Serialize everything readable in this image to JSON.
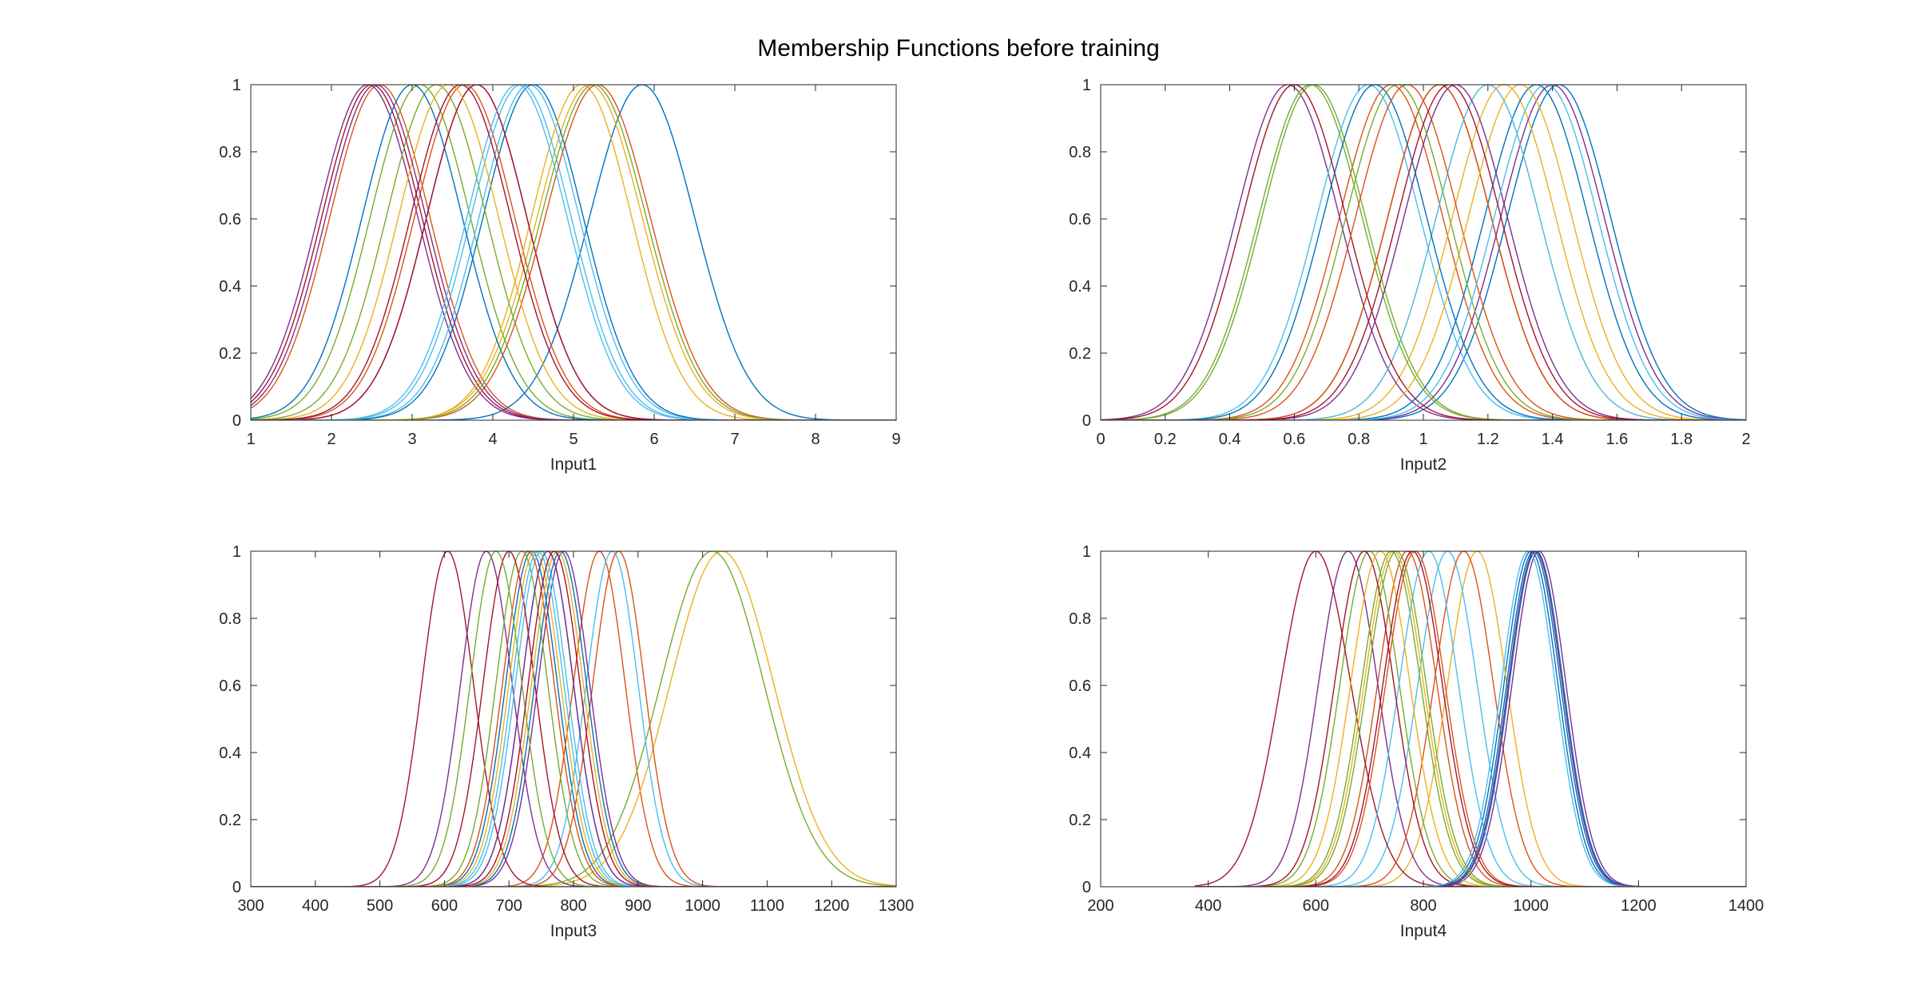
{
  "title": "Membership Functions before training",
  "colors": [
    "#0072BD",
    "#D95319",
    "#EDB120",
    "#7E2F8E",
    "#77AC30",
    "#4DBEEE",
    "#A2142F"
  ],
  "chart_data": [
    {
      "type": "line",
      "xlabel": "Input1",
      "ylabel": "",
      "xlim": [
        1,
        9
      ],
      "ylim": [
        0,
        1
      ],
      "xticks": [
        1,
        2,
        3,
        4,
        5,
        6,
        7,
        8,
        9
      ],
      "yticks": [
        0,
        0.2,
        0.4,
        0.6,
        0.8,
        1
      ],
      "ytick_labels": [
        "0",
        "0.2",
        "0.4",
        "0.6",
        "0.8",
        "1"
      ],
      "curve": "gaussian",
      "series": [
        {
          "mean": 5.85,
          "sigma": 0.65
        },
        {
          "mean": 2.6,
          "sigma": 0.62
        },
        {
          "mean": 5.2,
          "sigma": 0.65
        },
        {
          "mean": 2.45,
          "sigma": 0.62
        },
        {
          "mean": 3.1,
          "sigma": 0.62
        },
        {
          "mean": 4.45,
          "sigma": 0.62
        },
        {
          "mean": 2.5,
          "sigma": 0.62
        },
        {
          "mean": 4.5,
          "sigma": 0.62
        },
        {
          "mean": 3.65,
          "sigma": 0.62
        },
        {
          "mean": 5.1,
          "sigma": 0.62
        },
        {
          "mean": 3.8,
          "sigma": 0.62
        },
        {
          "mean": 3.3,
          "sigma": 0.62
        },
        {
          "mean": 4.35,
          "sigma": 0.62
        },
        {
          "mean": 3.8,
          "sigma": 0.62
        },
        {
          "mean": 3.0,
          "sigma": 0.62
        },
        {
          "mean": 5.3,
          "sigma": 0.65
        },
        {
          "mean": 3.45,
          "sigma": 0.62
        },
        {
          "mean": 2.55,
          "sigma": 0.62
        },
        {
          "mean": 5.25,
          "sigma": 0.65
        },
        {
          "mean": 4.3,
          "sigma": 0.62
        },
        {
          "mean": 3.6,
          "sigma": 0.62
        }
      ]
    },
    {
      "type": "line",
      "xlabel": "Input2",
      "ylabel": "",
      "xlim": [
        0,
        2
      ],
      "ylim": [
        0,
        1
      ],
      "xticks": [
        0,
        0.2,
        0.4,
        0.6,
        0.8,
        1,
        1.2,
        1.4,
        1.6,
        1.8,
        2
      ],
      "yticks": [
        0,
        0.2,
        0.4,
        0.6,
        0.8,
        1
      ],
      "ytick_labels": [
        "0",
        "0.2",
        "0.4",
        "0.6",
        "0.8",
        "1"
      ],
      "curve": "gaussian",
      "series": [
        {
          "mean": 1.42,
          "sigma": 0.16
        },
        {
          "mean": 0.9,
          "sigma": 0.16
        },
        {
          "mean": 1.25,
          "sigma": 0.16
        },
        {
          "mean": 0.58,
          "sigma": 0.16
        },
        {
          "mean": 0.66,
          "sigma": 0.16
        },
        {
          "mean": 0.83,
          "sigma": 0.16
        },
        {
          "mean": 1.05,
          "sigma": 0.16
        },
        {
          "mean": 1.35,
          "sigma": 0.16
        },
        {
          "mean": 1.05,
          "sigma": 0.16
        },
        {
          "mean": 1.2,
          "sigma": 0.16
        },
        {
          "mean": 1.4,
          "sigma": 0.16
        },
        {
          "mean": 0.65,
          "sigma": 0.16
        },
        {
          "mean": 1.2,
          "sigma": 0.16
        },
        {
          "mean": 0.6,
          "sigma": 0.16
        },
        {
          "mean": 0.85,
          "sigma": 0.16
        },
        {
          "mean": 0.95,
          "sigma": 0.16
        },
        {
          "mean": 1.3,
          "sigma": 0.16
        },
        {
          "mean": 1.1,
          "sigma": 0.16
        },
        {
          "mean": 0.92,
          "sigma": 0.16
        },
        {
          "mean": 1.38,
          "sigma": 0.16
        },
        {
          "mean": 1.08,
          "sigma": 0.16
        }
      ]
    },
    {
      "type": "line",
      "xlabel": "Input3",
      "ylabel": "",
      "xlim": [
        300,
        1300
      ],
      "ylim": [
        0,
        1
      ],
      "xticks": [
        300,
        400,
        500,
        600,
        700,
        800,
        900,
        1000,
        1100,
        1200,
        1300
      ],
      "yticks": [
        0,
        0.2,
        0.4,
        0.6,
        0.8,
        1
      ],
      "ytick_labels": [
        "0",
        "0.2",
        "0.4",
        "0.6",
        "0.8",
        "1"
      ],
      "curve": "gaussian",
      "series": [
        {
          "mean": 735,
          "sigma": 40
        },
        {
          "mean": 840,
          "sigma": 40
        },
        {
          "mean": 1030,
          "sigma": 80
        },
        {
          "mean": 665,
          "sigma": 40
        },
        {
          "mean": 1015,
          "sigma": 80
        },
        {
          "mean": 860,
          "sigma": 40
        },
        {
          "mean": 605,
          "sigma": 40
        },
        {
          "mean": 760,
          "sigma": 40
        },
        {
          "mean": 870,
          "sigma": 40
        },
        {
          "mean": 740,
          "sigma": 40
        },
        {
          "mean": 785,
          "sigma": 40
        },
        {
          "mean": 720,
          "sigma": 40
        },
        {
          "mean": 750,
          "sigma": 40
        },
        {
          "mean": 700,
          "sigma": 40
        },
        {
          "mean": 780,
          "sigma": 40
        },
        {
          "mean": 730,
          "sigma": 40
        },
        {
          "mean": 775,
          "sigma": 40
        },
        {
          "mean": 760,
          "sigma": 40
        },
        {
          "mean": 680,
          "sigma": 40
        },
        {
          "mean": 745,
          "sigma": 40
        },
        {
          "mean": 770,
          "sigma": 40
        }
      ]
    },
    {
      "type": "line",
      "xlabel": "Input4",
      "ylabel": "",
      "xlim": [
        200,
        1400
      ],
      "ylim": [
        0,
        1
      ],
      "xticks": [
        200,
        400,
        600,
        800,
        1000,
        1200,
        1400
      ],
      "yticks": [
        0,
        0.2,
        0.4,
        0.6,
        0.8,
        1
      ],
      "ytick_labels": [
        "0",
        "0.2",
        "0.4",
        "0.6",
        "0.8",
        "1"
      ],
      "curve": "gaussian",
      "x_start": 375,
      "series": [
        {
          "mean": 1000,
          "sigma": 50
        },
        {
          "mean": 770,
          "sigma": 55
        },
        {
          "mean": 900,
          "sigma": 55
        },
        {
          "mean": 660,
          "sigma": 55
        },
        {
          "mean": 700,
          "sigma": 55
        },
        {
          "mean": 845,
          "sigma": 55
        },
        {
          "mean": 600,
          "sigma": 65
        },
        {
          "mean": 1010,
          "sigma": 50
        },
        {
          "mean": 875,
          "sigma": 55
        },
        {
          "mean": 745,
          "sigma": 55
        },
        {
          "mean": 1015,
          "sigma": 50
        },
        {
          "mean": 740,
          "sigma": 55
        },
        {
          "mean": 810,
          "sigma": 55
        },
        {
          "mean": 690,
          "sigma": 55
        },
        {
          "mean": 1005,
          "sigma": 50
        },
        {
          "mean": 785,
          "sigma": 55
        },
        {
          "mean": 720,
          "sigma": 55
        },
        {
          "mean": 1008,
          "sigma": 50
        },
        {
          "mean": 750,
          "sigma": 55
        },
        {
          "mean": 995,
          "sigma": 50
        },
        {
          "mean": 780,
          "sigma": 55
        }
      ]
    }
  ]
}
